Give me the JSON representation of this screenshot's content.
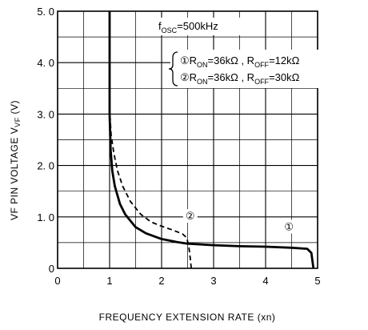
{
  "chart_data": {
    "type": "line",
    "xlabel": "FREQUENCY EXTENSION RATE (xn)",
    "ylabel": "VF PIN VOLTAGE V",
    "ylabel_sub": "VF",
    "ylabel_unit": " (V)",
    "xlim": [
      0,
      5
    ],
    "ylim": [
      0,
      5
    ],
    "x_ticks": [
      0,
      1,
      2,
      3,
      4,
      5
    ],
    "x_tick_labels": [
      "0",
      "1",
      "2",
      "3",
      "4",
      "5"
    ],
    "y_ticks": [
      0,
      1,
      2,
      3,
      4,
      5
    ],
    "y_tick_labels": [
      "0",
      "1. 0",
      "2. 0",
      "3. 0",
      "4. 0",
      "5. 0"
    ],
    "grid": true,
    "grid_minor_x": 0.5,
    "grid_minor_y": 0.5,
    "condition": {
      "f": "f",
      "sub": "OSC",
      "rest": "=500kHz"
    },
    "legend": {
      "position": "upper-right",
      "entries": [
        {
          "marker": "①",
          "r_on_label": "R",
          "r_on_sub": "ON",
          "r_on_value": "=36kΩ",
          "sep": " , ",
          "r_off_label": "R",
          "r_off_sub": "OFF",
          "r_off_value": "=12kΩ"
        },
        {
          "marker": "②",
          "r_on_label": "R",
          "r_on_sub": "ON",
          "r_on_value": "=36kΩ",
          "sep": " , ",
          "r_off_label": "R",
          "r_off_sub": "OFF",
          "r_off_value": "=30kΩ"
        }
      ]
    },
    "series": [
      {
        "marker": "①",
        "style": "solid",
        "points": [
          [
            1.0,
            5.0
          ],
          [
            1.0,
            3.0
          ],
          [
            1.02,
            2.3
          ],
          [
            1.05,
            1.9
          ],
          [
            1.1,
            1.6
          ],
          [
            1.2,
            1.25
          ],
          [
            1.3,
            1.05
          ],
          [
            1.5,
            0.8
          ],
          [
            1.7,
            0.68
          ],
          [
            2.0,
            0.57
          ],
          [
            2.3,
            0.51
          ],
          [
            2.5,
            0.48
          ],
          [
            3.0,
            0.45
          ],
          [
            3.5,
            0.43
          ],
          [
            4.0,
            0.42
          ],
          [
            4.5,
            0.4
          ],
          [
            4.8,
            0.38
          ],
          [
            4.88,
            0.3
          ],
          [
            4.92,
            0.0
          ]
        ]
      },
      {
        "marker": "②",
        "style": "dashed",
        "points": [
          [
            1.0,
            5.0
          ],
          [
            1.0,
            3.1
          ],
          [
            1.03,
            2.6
          ],
          [
            1.08,
            2.25
          ],
          [
            1.15,
            1.9
          ],
          [
            1.25,
            1.6
          ],
          [
            1.4,
            1.3
          ],
          [
            1.6,
            1.05
          ],
          [
            1.8,
            0.9
          ],
          [
            2.0,
            0.82
          ],
          [
            2.2,
            0.75
          ],
          [
            2.4,
            0.67
          ],
          [
            2.48,
            0.6
          ],
          [
            2.52,
            0.45
          ],
          [
            2.55,
            0.2
          ],
          [
            2.57,
            0.0
          ]
        ]
      }
    ],
    "series_markers": [
      {
        "text": "①",
        "x": 4.45,
        "y": 0.74
      },
      {
        "text": "②",
        "x": 2.55,
        "y": 0.95
      }
    ]
  }
}
